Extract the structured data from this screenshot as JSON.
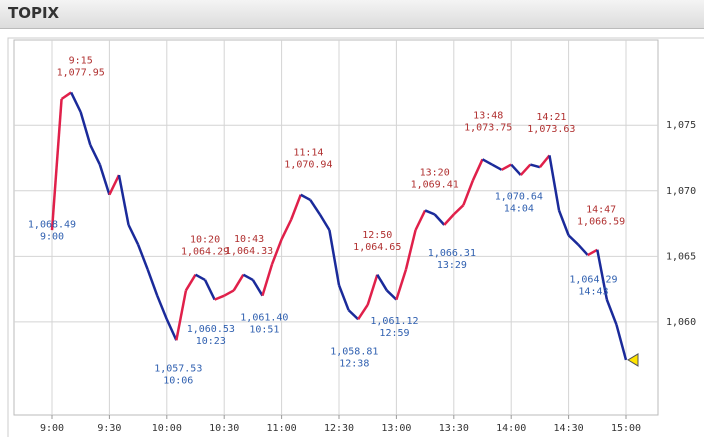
{
  "chart_data": {
    "type": "line",
    "title": "TOPIX",
    "categories": [
      "9:00",
      null,
      null,
      null,
      null,
      null,
      "9:30",
      null,
      null,
      null,
      null,
      null,
      "10:00",
      null,
      null,
      null,
      null,
      null,
      "10:30",
      null,
      null,
      null,
      null,
      null,
      "11:00",
      null,
      null,
      null,
      null,
      null,
      "12:30",
      null,
      null,
      null,
      null,
      null,
      "13:00",
      null,
      null,
      null,
      null,
      null,
      "13:30",
      null,
      null,
      null,
      null,
      null,
      "14:00",
      null,
      null,
      null,
      null,
      null,
      "14:30",
      null,
      null,
      null,
      null,
      null,
      "15:00"
    ],
    "series": [
      {
        "name": "TOPIX",
        "up_color": "#e0204a",
        "down_color": "#1a2a9a",
        "values": [
          1067.0,
          1077.0,
          1077.5,
          1076.0,
          1073.5,
          1072.0,
          1069.7,
          1071.2,
          1067.4,
          1065.9,
          1064.0,
          1062.0,
          1060.2,
          1058.6,
          1062.4,
          1063.6,
          1063.2,
          1061.7,
          1062.0,
          1062.4,
          1063.6,
          1063.2,
          1062.0,
          1064.4,
          1066.3,
          1067.8,
          1069.7,
          1069.3,
          1068.2,
          1067.0,
          1062.8,
          1060.9,
          1060.2,
          1061.3,
          1063.6,
          1062.4,
          1061.7,
          1064.0,
          1067.0,
          1068.5,
          1068.2,
          1067.4,
          1068.2,
          1068.9,
          1070.8,
          1072.4,
          1072.0,
          1071.6,
          1072.0,
          1071.2,
          1072.0,
          1071.8,
          1072.7,
          1068.5,
          1066.6,
          1065.9,
          1065.1,
          1065.5,
          1061.7,
          1059.8,
          1057.1
        ]
      }
    ],
    "ylim": [
      1052.9,
      1081.5
    ],
    "yticks": [
      {
        "value": 1060,
        "label": "1,060"
      },
      {
        "value": 1065,
        "label": "1,065"
      },
      {
        "value": 1070,
        "label": "1,070"
      },
      {
        "value": 1075,
        "label": "1,075"
      }
    ],
    "grid": true,
    "annotations": [
      {
        "time": "9:15",
        "value": 1077.95,
        "label": "1,077.95",
        "position": "above",
        "color": "#b03030"
      },
      {
        "time": "9:00",
        "value": 1068.49,
        "label": "1,068.49",
        "position": "below",
        "color": "#3060b0"
      },
      {
        "time": "10:06",
        "value": 1057.53,
        "label": "1,057.53",
        "position": "below",
        "color": "#3060b0"
      },
      {
        "time": "10:20",
        "value": 1064.29,
        "label": "1,064.29",
        "position": "above",
        "color": "#b03030"
      },
      {
        "time": "10:23",
        "value": 1060.53,
        "label": "1,060.53",
        "position": "below",
        "color": "#3060b0"
      },
      {
        "time": "10:43",
        "value": 1064.33,
        "label": "1,064.33",
        "position": "above",
        "color": "#b03030"
      },
      {
        "time": "10:51",
        "value": 1061.4,
        "label": "1,061.40",
        "position": "below",
        "color": "#3060b0"
      },
      {
        "time": "11:14",
        "value": 1070.94,
        "label": "1,070.94",
        "position": "above",
        "color": "#b03030"
      },
      {
        "time": "12:38",
        "value": 1058.81,
        "label": "1,058.81",
        "position": "below",
        "color": "#3060b0"
      },
      {
        "time": "12:50",
        "value": 1064.65,
        "label": "1,064.65",
        "position": "above",
        "color": "#b03030"
      },
      {
        "time": "12:59",
        "value": 1061.12,
        "label": "1,061.12",
        "position": "below",
        "color": "#3060b0"
      },
      {
        "time": "13:20",
        "value": 1069.41,
        "label": "1,069.41",
        "position": "above",
        "color": "#b03030"
      },
      {
        "time": "13:29",
        "value": 1066.31,
        "label": "1,066.31",
        "position": "below",
        "color": "#3060b0"
      },
      {
        "time": "13:48",
        "value": 1073.75,
        "label": "1,073.75",
        "position": "above",
        "color": "#b03030"
      },
      {
        "time": "14:04",
        "value": 1070.64,
        "label": "1,070.64",
        "position": "below",
        "color": "#3060b0"
      },
      {
        "time": "14:21",
        "value": 1073.63,
        "label": "1,073.63",
        "position": "above",
        "color": "#b03030"
      },
      {
        "time": "14:43",
        "value": 1064.29,
        "label": "1,064.29",
        "position": "below",
        "color": "#3060b0"
      },
      {
        "time": "14:47",
        "value": 1066.59,
        "label": "1,066.59",
        "position": "above",
        "color": "#b03030"
      }
    ]
  }
}
